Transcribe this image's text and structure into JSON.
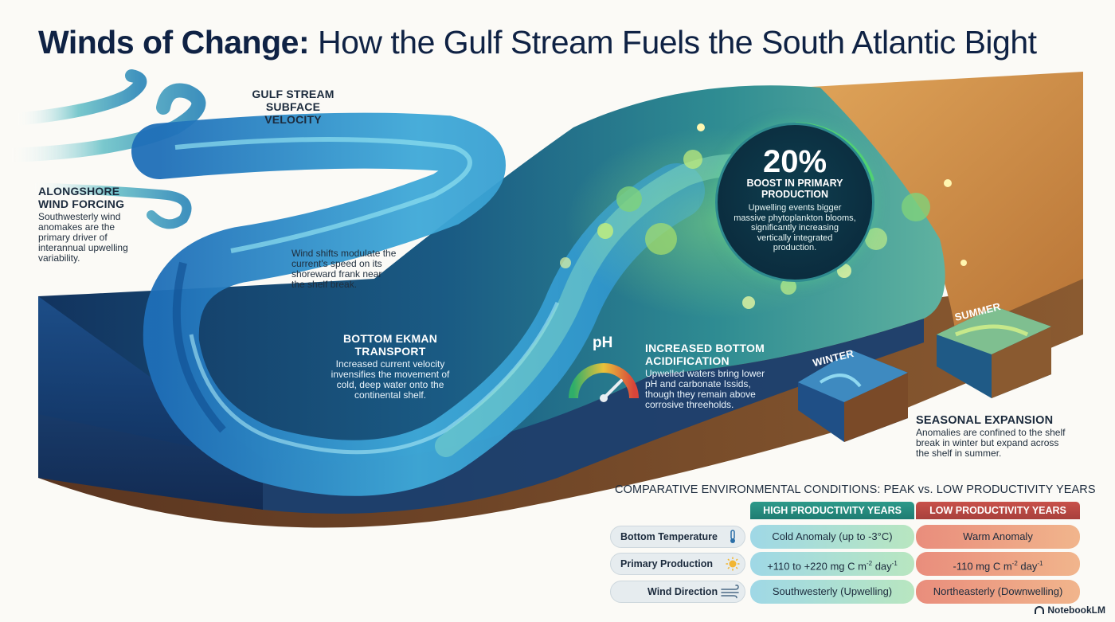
{
  "title": {
    "bold": "Winds of Change:",
    "rest": " How the Gulf Stream Fuels the South Atlantic Bight"
  },
  "labels": {
    "gulf_stream": {
      "line1": "GULF STREAM",
      "line2": "SUBFACE",
      "line3": "VELOCITY"
    },
    "alongshore": {
      "head1": "ALONGSHORE",
      "head2": "WIND FORCING",
      "body": [
        "Southwesterly wind",
        "anomakes are the",
        "primary driver of",
        "interannual upwelling",
        "variability."
      ]
    },
    "wind_shifts": {
      "body": [
        "Wind shifts modulate the",
        "current's speed on its",
        "shoreward frank near",
        "the shelf break."
      ]
    },
    "ekman": {
      "head1": "BOTTOM EKMAN",
      "head2": "TRANSPORT",
      "body": [
        "Increased current velocity",
        "invensifies the movement of",
        "cold, deep water onto the",
        "continental shelf."
      ]
    },
    "acid": {
      "ph": "pH",
      "head1": "INCREASED BOTTOM",
      "head2": "ACIDIFICATION",
      "body": [
        "Upwelled waters bring lower",
        "pH and carbonate Issids,",
        "though they remain above",
        "corrosive threeholds."
      ]
    },
    "winter": "WINTER",
    "summer": "SUMMER",
    "seasonal": {
      "head": "SEASONAL EXPANSION",
      "body": [
        "Anomalies are confined to the shelf",
        "break in winter but expand across",
        "the shelf in summer."
      ]
    }
  },
  "stat": {
    "value": "20%",
    "head1": "BOOST IN PRIMARY",
    "head2": "PRODUCTION",
    "body": [
      "Upwelling events bigger",
      "massive phytoplankton blooms,",
      "significantly increasing",
      "vertically integrated",
      "production."
    ],
    "ring_fraction": 0.2
  },
  "table": {
    "title": "COMPARATIVE ENVIRONMENTAL CONDITIONS: PEAK vs. LOW PRODUCTIVITY YEARS",
    "col_high": "HIGH PRODUCTIVITY YEARS",
    "col_low": "LOW PRODUCTIVITY YEARS",
    "rows": [
      {
        "label": "Bottom Temperature",
        "icon": "thermometer-icon",
        "high": "Cold Anomaly (up to -3°C)",
        "low": "Warm Anomaly"
      },
      {
        "label": "Primary Production",
        "icon": "sun-icon",
        "high_a": "+110 to +220 mg C m",
        "high_b": "-2",
        "high_c": " day",
        "high_d": "-1",
        "low_a": "-110 mg C m",
        "low_b": "-2",
        "low_c": " day",
        "low_d": "-1"
      },
      {
        "label": "Wind Direction",
        "icon": "wind-icon",
        "high": "Southwesterly (Upwelling)",
        "low": "Northeasterly (Downwelling)"
      }
    ]
  },
  "brand": "NotebookLM",
  "colors": {
    "title": "#0f2244",
    "high": "#2d9a8a",
    "low": "#c8514a",
    "ocean_deep": "#12335e",
    "shelf_sand": "#c9873e"
  }
}
